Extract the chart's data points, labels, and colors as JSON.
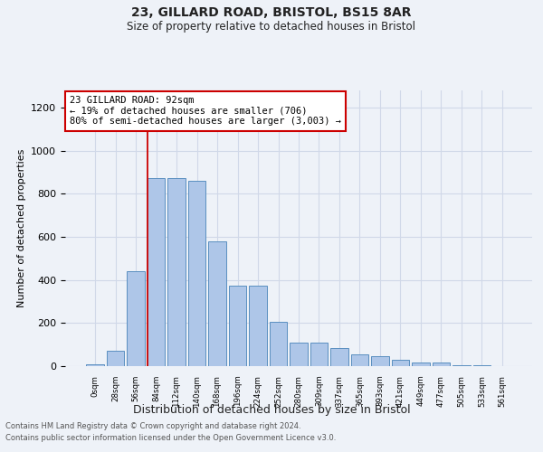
{
  "title1": "23, GILLARD ROAD, BRISTOL, BS15 8AR",
  "title2": "Size of property relative to detached houses in Bristol",
  "xlabel": "Distribution of detached houses by size in Bristol",
  "ylabel": "Number of detached properties",
  "bar_labels": [
    "0sqm",
    "28sqm",
    "56sqm",
    "84sqm",
    "112sqm",
    "140sqm",
    "168sqm",
    "196sqm",
    "224sqm",
    "252sqm",
    "280sqm",
    "309sqm",
    "337sqm",
    "365sqm",
    "393sqm",
    "421sqm",
    "449sqm",
    "477sqm",
    "505sqm",
    "533sqm",
    "561sqm"
  ],
  "bar_values": [
    10,
    70,
    440,
    875,
    875,
    860,
    580,
    375,
    375,
    205,
    110,
    110,
    85,
    55,
    45,
    30,
    15,
    15,
    5,
    3,
    2
  ],
  "bar_color": "#aec6e8",
  "bar_edge_color": "#5a8fc0",
  "grid_color": "#d0d8e8",
  "background_color": "#eef2f8",
  "vline_x": 2.575,
  "vline_color": "#cc0000",
  "annotation_text": "23 GILLARD ROAD: 92sqm\n← 19% of detached houses are smaller (706)\n80% of semi-detached houses are larger (3,003) →",
  "annotation_box_facecolor": "#ffffff",
  "annotation_border_color": "#cc0000",
  "ylim": [
    0,
    1280
  ],
  "yticks": [
    0,
    200,
    400,
    600,
    800,
    1000,
    1200
  ],
  "footer1": "Contains HM Land Registry data © Crown copyright and database right 2024.",
  "footer2": "Contains public sector information licensed under the Open Government Licence v3.0."
}
